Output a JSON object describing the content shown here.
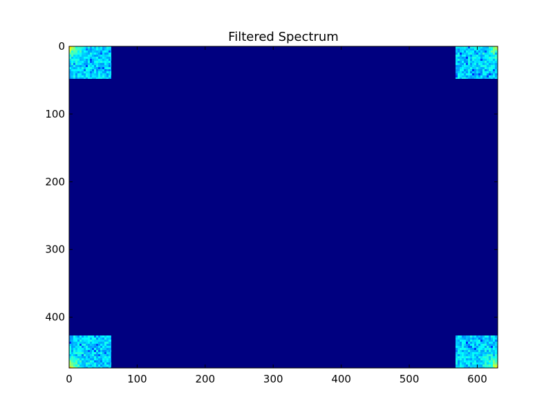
{
  "chart_data": {
    "type": "heatmap",
    "title": "Filtered Spectrum",
    "xlabel": "",
    "ylabel": "",
    "xlim": [
      0,
      630
    ],
    "ylim": [
      475,
      0
    ],
    "x_ticks": [
      0,
      100,
      200,
      300,
      400,
      500,
      600
    ],
    "y_ticks": [
      0,
      100,
      200,
      300,
      400
    ],
    "x_tick_labels": [
      "0",
      "100",
      "200",
      "300",
      "400",
      "500",
      "600"
    ],
    "y_tick_labels": [
      "0",
      "100",
      "200",
      "300",
      "400"
    ],
    "grid": false,
    "colormap": "jet",
    "background_value": 0,
    "background_color": "#000080",
    "regions": [
      {
        "corner": "top-left",
        "x": [
          0,
          62
        ],
        "y": [
          0,
          48
        ],
        "peak_corner": "top-left"
      },
      {
        "corner": "top-right",
        "x": [
          568,
          630
        ],
        "y": [
          0,
          48
        ],
        "peak_corner": "top-right"
      },
      {
        "corner": "bottom-left",
        "x": [
          0,
          62
        ],
        "y": [
          427,
          475
        ],
        "peak_corner": "bottom-left"
      },
      {
        "corner": "bottom-right",
        "x": [
          568,
          630
        ],
        "y": [
          427,
          475
        ],
        "peak_corner": "bottom-right"
      }
    ]
  }
}
